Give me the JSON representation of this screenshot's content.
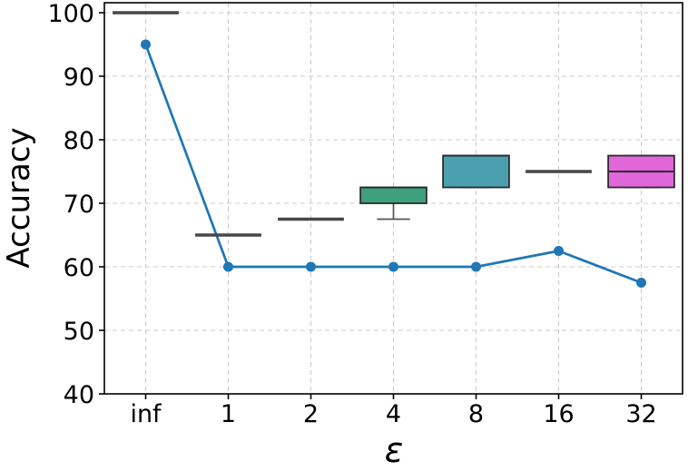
{
  "chart_data": {
    "type": "line+box",
    "title": "",
    "xlabel": "ε",
    "ylabel": "Accuracy",
    "categories": [
      "inf",
      "1",
      "2",
      "4",
      "8",
      "16",
      "32"
    ],
    "ylim": [
      40,
      101.6
    ],
    "yticks": [
      40,
      50,
      60,
      70,
      80,
      90,
      100
    ],
    "grid": "dashed both axes",
    "legend": "none",
    "line_series": {
      "name": "accuracy-line",
      "values": [
        95,
        60,
        60,
        60,
        60,
        62.5,
        57.5
      ],
      "color": "#1f77b4"
    },
    "boxplots": [
      {
        "category": "inf",
        "whisker_low": 100,
        "q1": 100,
        "median": 100,
        "q3": 100,
        "whisker_high": 100,
        "fill": null
      },
      {
        "category": "1",
        "whisker_low": 65,
        "q1": 65,
        "median": 65,
        "q3": 65,
        "whisker_high": 65,
        "fill": null
      },
      {
        "category": "2",
        "whisker_low": 67.5,
        "q1": 67.5,
        "median": 67.5,
        "q3": 67.5,
        "whisker_high": 67.5,
        "fill": null
      },
      {
        "category": "4",
        "whisker_low": 67.5,
        "q1": 70,
        "median": 72.5,
        "q3": 72.5,
        "whisker_high": 72.5,
        "fill": "#3fa07e"
      },
      {
        "category": "8",
        "whisker_low": 72.5,
        "q1": 72.5,
        "median": 77.5,
        "q3": 77.5,
        "whisker_high": 77.5,
        "fill": "#4aa0ae"
      },
      {
        "category": "16",
        "whisker_low": 75,
        "q1": 75,
        "median": 75,
        "q3": 75,
        "whisker_high": 75,
        "fill": null
      },
      {
        "category": "32",
        "whisker_low": 72.5,
        "q1": 72.5,
        "median": 75,
        "q3": 77.5,
        "whisker_high": 77.5,
        "fill": "#e066da"
      }
    ],
    "colors": {
      "line": "#1f77b4",
      "box_edge": "#2b2b2b",
      "whisker": "#555555",
      "flat_box_line": "#474747",
      "grid": "#cccccc",
      "spine": "#000000",
      "text": "#000000",
      "background": "#ffffff"
    }
  }
}
